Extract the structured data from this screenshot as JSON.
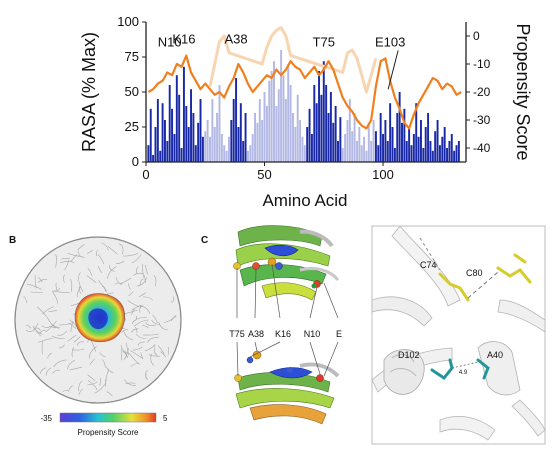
{
  "chart_data": {
    "type": "bar",
    "xlabel": "Amino Acid",
    "ylabel": "RASA (% Max)",
    "y2label": "Propensity Score",
    "xlim": [
      0,
      135
    ],
    "ylim": [
      0,
      100
    ],
    "y2lim": [
      -45,
      5
    ],
    "xticks": [
      "0",
      "50",
      "100"
    ],
    "yticks": [
      "0",
      "25",
      "50",
      "75",
      "100"
    ],
    "y2ticks": [
      "0",
      "-10",
      "-20",
      "-30",
      "-40"
    ],
    "bars": [
      {
        "x": 1,
        "y": 12,
        "tone": "dark"
      },
      {
        "x": 2,
        "y": 38,
        "tone": "dark"
      },
      {
        "x": 3,
        "y": 5,
        "tone": "dark"
      },
      {
        "x": 4,
        "y": 25,
        "tone": "dark"
      },
      {
        "x": 5,
        "y": 45,
        "tone": "dark"
      },
      {
        "x": 6,
        "y": 8,
        "tone": "dark"
      },
      {
        "x": 7,
        "y": 42,
        "tone": "dark"
      },
      {
        "x": 8,
        "y": 30,
        "tone": "dark"
      },
      {
        "x": 9,
        "y": 15,
        "tone": "dark"
      },
      {
        "x": 10,
        "y": 55,
        "tone": "dark"
      },
      {
        "x": 11,
        "y": 38,
        "tone": "dark"
      },
      {
        "x": 12,
        "y": 20,
        "tone": "dark"
      },
      {
        "x": 13,
        "y": 62,
        "tone": "dark"
      },
      {
        "x": 14,
        "y": 48,
        "tone": "dark"
      },
      {
        "x": 15,
        "y": 10,
        "tone": "dark"
      },
      {
        "x": 16,
        "y": 68,
        "tone": "dark"
      },
      {
        "x": 17,
        "y": 40,
        "tone": "dark"
      },
      {
        "x": 18,
        "y": 25,
        "tone": "dark"
      },
      {
        "x": 19,
        "y": 52,
        "tone": "dark"
      },
      {
        "x": 20,
        "y": 35,
        "tone": "dark"
      },
      {
        "x": 21,
        "y": 12,
        "tone": "dark"
      },
      {
        "x": 22,
        "y": 28,
        "tone": "dark"
      },
      {
        "x": 23,
        "y": 45,
        "tone": "dark"
      },
      {
        "x": 24,
        "y": 18,
        "tone": "dark"
      },
      {
        "x": 25,
        "y": 22,
        "tone": "light"
      },
      {
        "x": 26,
        "y": 30,
        "tone": "light"
      },
      {
        "x": 27,
        "y": 18,
        "tone": "light"
      },
      {
        "x": 28,
        "y": 45,
        "tone": "light"
      },
      {
        "x": 29,
        "y": 25,
        "tone": "light"
      },
      {
        "x": 30,
        "y": 35,
        "tone": "light"
      },
      {
        "x": 31,
        "y": 55,
        "tone": "light"
      },
      {
        "x": 32,
        "y": 20,
        "tone": "light"
      },
      {
        "x": 33,
        "y": 12,
        "tone": "light"
      },
      {
        "x": 34,
        "y": 8,
        "tone": "light"
      },
      {
        "x": 35,
        "y": 18,
        "tone": "light"
      },
      {
        "x": 36,
        "y": 30,
        "tone": "dark"
      },
      {
        "x": 37,
        "y": 45,
        "tone": "dark"
      },
      {
        "x": 38,
        "y": 60,
        "tone": "dark"
      },
      {
        "x": 39,
        "y": 25,
        "tone": "dark"
      },
      {
        "x": 40,
        "y": 42,
        "tone": "dark"
      },
      {
        "x": 41,
        "y": 15,
        "tone": "dark"
      },
      {
        "x": 42,
        "y": 35,
        "tone": "dark"
      },
      {
        "x": 43,
        "y": 8,
        "tone": "light"
      },
      {
        "x": 44,
        "y": 12,
        "tone": "light"
      },
      {
        "x": 45,
        "y": 20,
        "tone": "light"
      },
      {
        "x": 46,
        "y": 35,
        "tone": "light"
      },
      {
        "x": 47,
        "y": 28,
        "tone": "light"
      },
      {
        "x": 48,
        "y": 45,
        "tone": "light"
      },
      {
        "x": 49,
        "y": 30,
        "tone": "light"
      },
      {
        "x": 50,
        "y": 50,
        "tone": "light"
      },
      {
        "x": 51,
        "y": 40,
        "tone": "light"
      },
      {
        "x": 52,
        "y": 58,
        "tone": "light"
      },
      {
        "x": 53,
        "y": 65,
        "tone": "light"
      },
      {
        "x": 54,
        "y": 72,
        "tone": "light"
      },
      {
        "x": 55,
        "y": 40,
        "tone": "light"
      },
      {
        "x": 56,
        "y": 52,
        "tone": "light"
      },
      {
        "x": 57,
        "y": 80,
        "tone": "light"
      },
      {
        "x": 58,
        "y": 62,
        "tone": "light"
      },
      {
        "x": 59,
        "y": 45,
        "tone": "light"
      },
      {
        "x": 60,
        "y": 70,
        "tone": "light"
      },
      {
        "x": 61,
        "y": 55,
        "tone": "light"
      },
      {
        "x": 62,
        "y": 35,
        "tone": "light"
      },
      {
        "x": 63,
        "y": 25,
        "tone": "light"
      },
      {
        "x": 64,
        "y": 48,
        "tone": "light"
      },
      {
        "x": 65,
        "y": 30,
        "tone": "light"
      },
      {
        "x": 66,
        "y": 18,
        "tone": "light"
      },
      {
        "x": 67,
        "y": 12,
        "tone": "light"
      },
      {
        "x": 68,
        "y": 25,
        "tone": "dark"
      },
      {
        "x": 69,
        "y": 38,
        "tone": "dark"
      },
      {
        "x": 70,
        "y": 20,
        "tone": "dark"
      },
      {
        "x": 71,
        "y": 55,
        "tone": "dark"
      },
      {
        "x": 72,
        "y": 42,
        "tone": "dark"
      },
      {
        "x": 73,
        "y": 65,
        "tone": "dark"
      },
      {
        "x": 74,
        "y": 48,
        "tone": "dark"
      },
      {
        "x": 75,
        "y": 72,
        "tone": "dark"
      },
      {
        "x": 76,
        "y": 55,
        "tone": "dark"
      },
      {
        "x": 77,
        "y": 35,
        "tone": "dark"
      },
      {
        "x": 78,
        "y": 50,
        "tone": "dark"
      },
      {
        "x": 79,
        "y": 28,
        "tone": "dark"
      },
      {
        "x": 80,
        "y": 40,
        "tone": "dark"
      },
      {
        "x": 81,
        "y": 15,
        "tone": "dark"
      },
      {
        "x": 82,
        "y": 32,
        "tone": "dark"
      },
      {
        "x": 83,
        "y": 10,
        "tone": "light"
      },
      {
        "x": 84,
        "y": 20,
        "tone": "light"
      },
      {
        "x": 85,
        "y": 30,
        "tone": "light"
      },
      {
        "x": 86,
        "y": 45,
        "tone": "light"
      },
      {
        "x": 87,
        "y": 22,
        "tone": "light"
      },
      {
        "x": 88,
        "y": 35,
        "tone": "light"
      },
      {
        "x": 89,
        "y": 15,
        "tone": "light"
      },
      {
        "x": 90,
        "y": 25,
        "tone": "light"
      },
      {
        "x": 91,
        "y": 12,
        "tone": "light"
      },
      {
        "x": 92,
        "y": 18,
        "tone": "light"
      },
      {
        "x": 93,
        "y": 8,
        "tone": "light"
      },
      {
        "x": 94,
        "y": 28,
        "tone": "light"
      },
      {
        "x": 95,
        "y": 15,
        "tone": "light"
      },
      {
        "x": 96,
        "y": 30,
        "tone": "light"
      },
      {
        "x": 97,
        "y": 22,
        "tone": "dark"
      },
      {
        "x": 98,
        "y": 12,
        "tone": "dark"
      },
      {
        "x": 99,
        "y": 35,
        "tone": "dark"
      },
      {
        "x": 100,
        "y": 20,
        "tone": "dark"
      },
      {
        "x": 101,
        "y": 30,
        "tone": "dark"
      },
      {
        "x": 102,
        "y": 15,
        "tone": "dark"
      },
      {
        "x": 103,
        "y": 42,
        "tone": "dark"
      },
      {
        "x": 104,
        "y": 25,
        "tone": "dark"
      },
      {
        "x": 105,
        "y": 10,
        "tone": "dark"
      },
      {
        "x": 106,
        "y": 35,
        "tone": "dark"
      },
      {
        "x": 107,
        "y": 50,
        "tone": "dark"
      },
      {
        "x": 108,
        "y": 28,
        "tone": "dark"
      },
      {
        "x": 109,
        "y": 38,
        "tone": "dark"
      },
      {
        "x": 110,
        "y": 15,
        "tone": "dark"
      },
      {
        "x": 111,
        "y": 25,
        "tone": "dark"
      },
      {
        "x": 112,
        "y": 12,
        "tone": "dark"
      },
      {
        "x": 113,
        "y": 20,
        "tone": "dark"
      },
      {
        "x": 114,
        "y": 42,
        "tone": "dark"
      },
      {
        "x": 115,
        "y": 18,
        "tone": "dark"
      },
      {
        "x": 116,
        "y": 30,
        "tone": "dark"
      },
      {
        "x": 117,
        "y": 10,
        "tone": "dark"
      },
      {
        "x": 118,
        "y": 25,
        "tone": "dark"
      },
      {
        "x": 119,
        "y": 35,
        "tone": "dark"
      },
      {
        "x": 120,
        "y": 15,
        "tone": "dark"
      },
      {
        "x": 121,
        "y": 8,
        "tone": "dark"
      },
      {
        "x": 122,
        "y": 22,
        "tone": "dark"
      },
      {
        "x": 123,
        "y": 30,
        "tone": "dark"
      },
      {
        "x": 124,
        "y": 12,
        "tone": "dark"
      },
      {
        "x": 125,
        "y": 18,
        "tone": "dark"
      },
      {
        "x": 126,
        "y": 25,
        "tone": "dark"
      },
      {
        "x": 127,
        "y": 10,
        "tone": "dark"
      },
      {
        "x": 128,
        "y": 15,
        "tone": "dark"
      },
      {
        "x": 129,
        "y": 20,
        "tone": "dark"
      },
      {
        "x": 130,
        "y": 8,
        "tone": "dark"
      },
      {
        "x": 131,
        "y": 12,
        "tone": "dark"
      },
      {
        "x": 132,
        "y": 15,
        "tone": "dark"
      }
    ],
    "propensity": [
      {
        "x": 1,
        "y": -20
      },
      {
        "x": 3,
        "y": -19
      },
      {
        "x": 5,
        "y": -17
      },
      {
        "x": 7,
        "y": -16
      },
      {
        "x": 9,
        "y": -13
      },
      {
        "x": 11,
        "y": -14
      },
      {
        "x": 13,
        "y": -10
      },
      {
        "x": 15,
        "y": -11
      },
      {
        "x": 17,
        "y": -7
      },
      {
        "x": 19,
        "y": -13
      },
      {
        "x": 21,
        "y": -16
      },
      {
        "x": 23,
        "y": -19
      },
      {
        "x": 25,
        "y": -17
      },
      {
        "x": 27,
        "y": -19
      },
      {
        "x": 29,
        "y": -21
      },
      {
        "x": 31,
        "y": -20
      },
      {
        "x": 33,
        "y": -22
      },
      {
        "x": 35,
        "y": -18
      },
      {
        "x": 37,
        "y": -15
      },
      {
        "x": 39,
        "y": -10
      },
      {
        "x": 41,
        "y": -13
      },
      {
        "x": 43,
        "y": -17
      },
      {
        "x": 45,
        "y": -20
      },
      {
        "x": 47,
        "y": -18
      },
      {
        "x": 49,
        "y": -16
      },
      {
        "x": 51,
        "y": -14
      },
      {
        "x": 53,
        "y": -15
      },
      {
        "x": 55,
        "y": -12
      },
      {
        "x": 57,
        "y": -14
      },
      {
        "x": 59,
        "y": -12
      },
      {
        "x": 61,
        "y": -9
      },
      {
        "x": 63,
        "y": -11
      },
      {
        "x": 65,
        "y": -12
      },
      {
        "x": 67,
        "y": -15
      },
      {
        "x": 69,
        "y": -13
      },
      {
        "x": 71,
        "y": -11
      },
      {
        "x": 73,
        "y": -14
      },
      {
        "x": 75,
        "y": -12
      },
      {
        "x": 77,
        "y": -9
      },
      {
        "x": 79,
        "y": -12
      },
      {
        "x": 81,
        "y": -17
      },
      {
        "x": 83,
        "y": -22
      },
      {
        "x": 85,
        "y": -25
      },
      {
        "x": 87,
        "y": -27
      },
      {
        "x": 89,
        "y": -30
      },
      {
        "x": 91,
        "y": -32
      },
      {
        "x": 93,
        "y": -33
      },
      {
        "x": 95,
        "y": -30
      },
      {
        "x": 97,
        "y": -18
      },
      {
        "x": 99,
        "y": -9
      },
      {
        "x": 101,
        "y": -8
      },
      {
        "x": 103,
        "y": -16
      },
      {
        "x": 105,
        "y": -22
      },
      {
        "x": 107,
        "y": -26
      },
      {
        "x": 109,
        "y": -31
      },
      {
        "x": 111,
        "y": -33
      },
      {
        "x": 113,
        "y": -28
      },
      {
        "x": 115,
        "y": -24
      },
      {
        "x": 117,
        "y": -21
      },
      {
        "x": 119,
        "y": -18
      },
      {
        "x": 121,
        "y": -15
      },
      {
        "x": 123,
        "y": -16
      },
      {
        "x": 125,
        "y": -19
      },
      {
        "x": 127,
        "y": -17
      },
      {
        "x": 129,
        "y": -18
      },
      {
        "x": 131,
        "y": -21
      },
      {
        "x": 133,
        "y": -20
      }
    ],
    "propensity_faded": [
      {
        "x": 27,
        "y": -18
      },
      {
        "x": 29,
        "y": -10
      },
      {
        "x": 31,
        "y": -2
      },
      {
        "x": 33,
        "y": 0
      },
      {
        "x": 35,
        "y": -6
      },
      {
        "x": 49,
        "y": -10
      },
      {
        "x": 51,
        "y": -4
      },
      {
        "x": 53,
        "y": 0
      },
      {
        "x": 55,
        "y": 2
      },
      {
        "x": 57,
        "y": 3
      },
      {
        "x": 59,
        "y": 0
      },
      {
        "x": 61,
        "y": -7
      },
      {
        "x": 83,
        "y": -13
      },
      {
        "x": 85,
        "y": -6
      },
      {
        "x": 87,
        "y": -5
      },
      {
        "x": 89,
        "y": -8
      },
      {
        "x": 91,
        "y": -14
      },
      {
        "x": 93,
        "y": -20
      },
      {
        "x": 95,
        "y": -14
      },
      {
        "x": 97,
        "y": -8
      }
    ],
    "annotations": [
      {
        "text": "N10",
        "x": 10,
        "score": -8
      },
      {
        "text": "K16",
        "x": 16,
        "score": -7
      },
      {
        "text": "A38",
        "x": 38,
        "score": -7
      },
      {
        "text": "T75",
        "x": 75,
        "score": -8
      },
      {
        "text": "E103",
        "x": 103,
        "score": -8
      }
    ]
  },
  "panels": {
    "b": {
      "label": "B",
      "colorbar_min": "-35",
      "colorbar_max": "5",
      "colorbar_title": "Propensity Score"
    },
    "c": {
      "label": "C",
      "residues": [
        "T75",
        "A38",
        "K16",
        "N10",
        "E"
      ]
    },
    "d": {
      "residues": [
        "C74",
        "C80",
        "D102",
        "A40"
      ],
      "distance": "4.9"
    }
  },
  "colors": {
    "bar_dark": "#1a2aa6",
    "bar_light": "#b3b9e4",
    "line": "#f07f1e",
    "line_faded": "#f8d5b0",
    "cys": "#d6cc2a",
    "teal": "#22969a"
  }
}
